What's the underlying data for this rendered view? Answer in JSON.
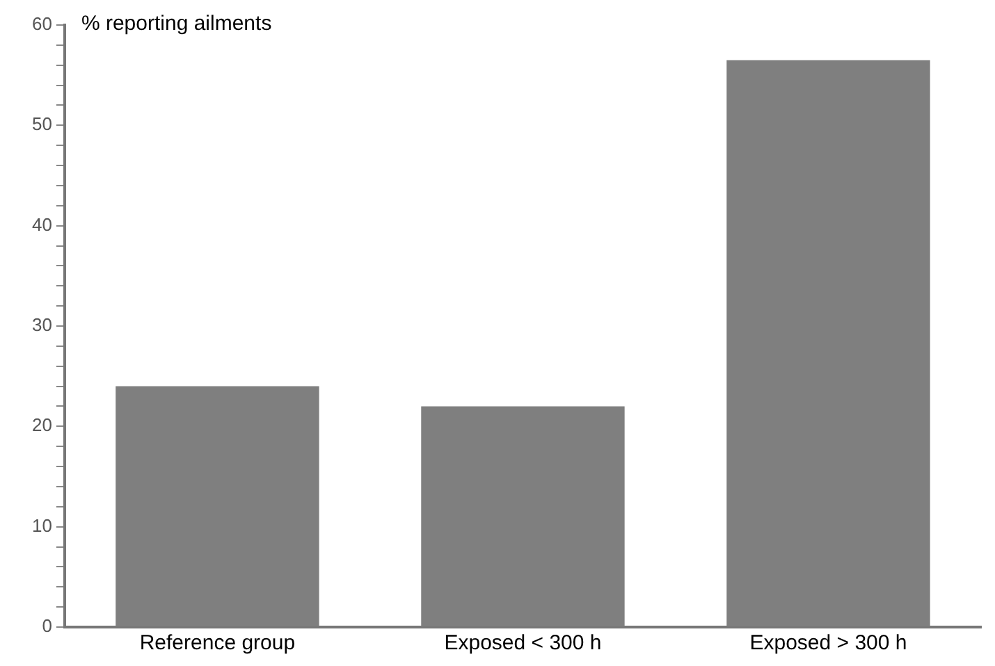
{
  "chart_data": {
    "type": "bar",
    "ylabel": "% reporting ailments",
    "categories": [
      "Reference group",
      "Exposed < 300 h",
      "Exposed > 300 h"
    ],
    "values": [
      24,
      22,
      56.5
    ],
    "color": "#7f7f7f",
    "ylim": [
      0,
      60
    ],
    "yticks": [
      0,
      {
        "value": 2,
        "label": null
      },
      {
        "value": 4,
        "label": null
      },
      {
        "value": 6,
        "label": null
      },
      {
        "value": 8,
        "label": null
      },
      10,
      {
        "value": 12,
        "label": null
      },
      {
        "value": 14,
        "label": null
      },
      {
        "value": 16,
        "label": null
      },
      {
        "value": 18,
        "label": null
      },
      20,
      {
        "value": 22,
        "label": null
      },
      {
        "value": 24,
        "label": null
      },
      {
        "value": 26,
        "label": null
      },
      {
        "value": 28,
        "label": null
      },
      30,
      {
        "value": 32,
        "label": null
      },
      {
        "value": 34,
        "label": null
      },
      {
        "value": 36,
        "label": null
      },
      {
        "value": 38,
        "label": null
      },
      40,
      {
        "value": 42,
        "label": null
      },
      {
        "value": 44,
        "label": null
      },
      {
        "value": 46,
        "label": null
      },
      {
        "value": 48,
        "label": null
      },
      50,
      {
        "value": 52,
        "label": null
      },
      {
        "value": 54,
        "label": null
      },
      {
        "value": 56,
        "label": null
      },
      {
        "value": 58,
        "label": null
      },
      60
    ],
    "grid": false,
    "legend": false
  }
}
